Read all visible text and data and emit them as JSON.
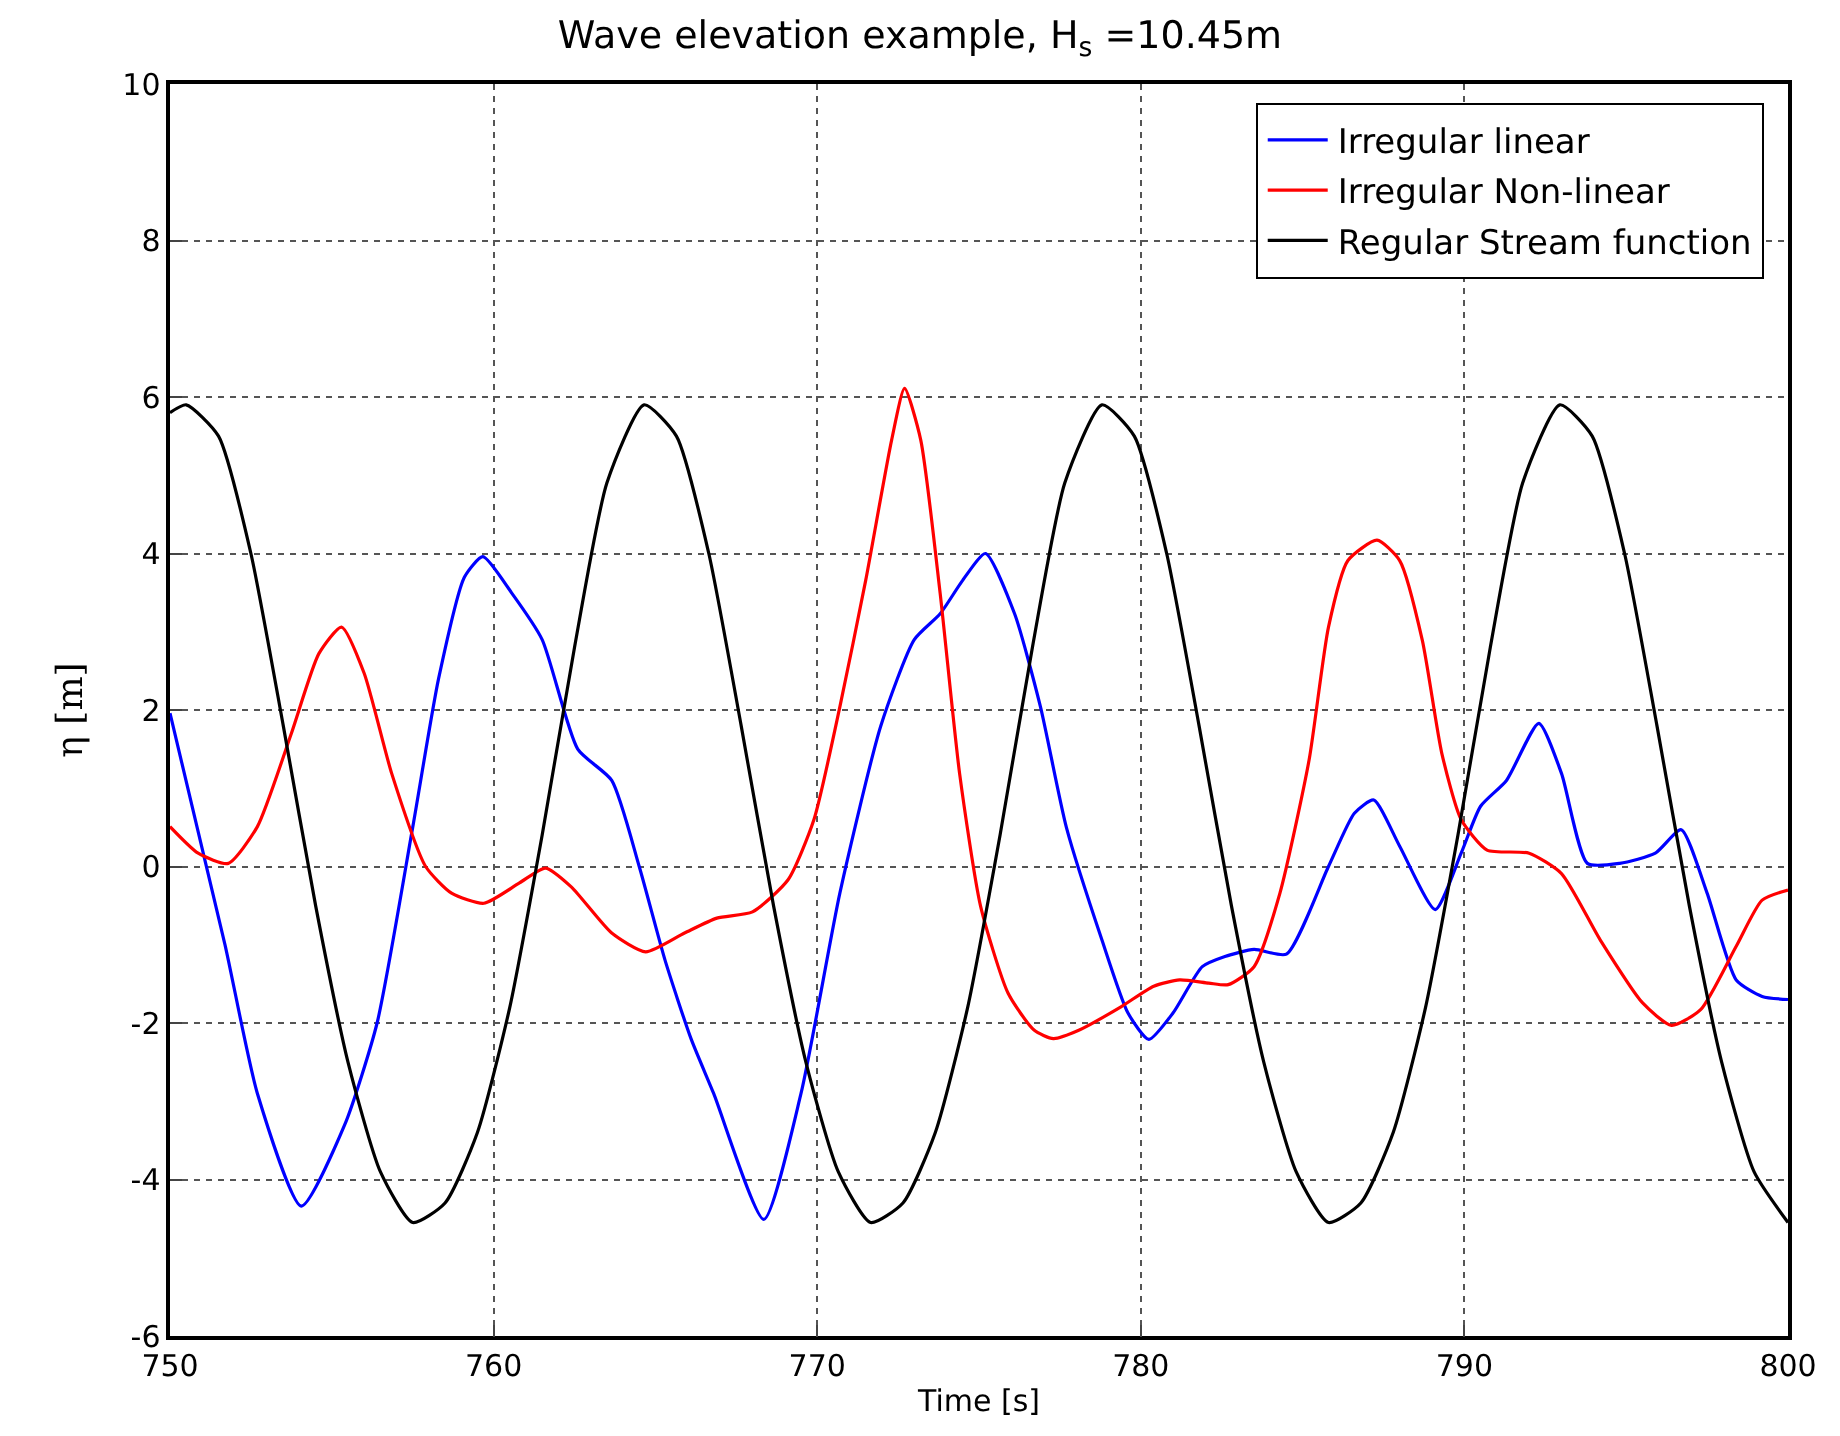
{
  "chart_data": {
    "type": "line",
    "title": "Wave elevation example, H$_{s}$ =10.45m",
    "xlabel": "Time [s]",
    "ylabel": "η [m]",
    "xlim": [
      750,
      800
    ],
    "xticks": [
      750,
      760,
      770,
      780,
      790,
      800
    ],
    "ylim": [
      -6,
      10
    ],
    "yticks": [
      -6,
      -4,
      -2,
      0,
      2,
      4,
      6,
      8,
      10
    ],
    "grid": true,
    "legend": "top right",
    "series": [
      {
        "name": "Irregular linear",
        "color": "#0000ff",
        "x": [
          750,
          751.7,
          752.7,
          754.06,
          755.4,
          756.4,
          757.5,
          758.3,
          759.1,
          759.67,
          760.55,
          761.5,
          762.6,
          763.65,
          764.5,
          765.3,
          766.1,
          766.8,
          768.35,
          769.5,
          770.7,
          771.96,
          773.0,
          773.8,
          774.5,
          775.2,
          776.1,
          776.9,
          777.7,
          778.8,
          779.6,
          780.25,
          781.0,
          781.9,
          782.6,
          783.5,
          784.5,
          785.8,
          786.6,
          787.2,
          788.0,
          789.1,
          789.9,
          790.5,
          791.3,
          792.3,
          793.0,
          793.8,
          794.8,
          795.9,
          796.7,
          797.5,
          798.4,
          799.2,
          800
        ],
        "values": [
          1.96,
          -1.0,
          -2.9,
          -4.34,
          -3.3,
          -2.0,
          0.5,
          2.4,
          3.7,
          3.96,
          3.5,
          2.9,
          1.5,
          1.1,
          0,
          -1.2,
          -2.2,
          -2.9,
          -4.51,
          -2.9,
          -0.34,
          1.79,
          2.9,
          3.23,
          3.66,
          4.0,
          3.23,
          2.04,
          0.5,
          -0.94,
          -1.87,
          -2.21,
          -1.87,
          -1.28,
          -1.15,
          -1.06,
          -1.12,
          0,
          0.68,
          0.85,
          0.26,
          -0.55,
          0.17,
          0.77,
          1.1,
          1.83,
          1.19,
          0.04,
          0.04,
          0.17,
          0.47,
          -0.34,
          -1.45,
          -1.66,
          -1.7
        ]
      },
      {
        "name": "Irregular Non-linear",
        "color": "#ff0000",
        "x": [
          750,
          750.87,
          751.8,
          752.7,
          753.75,
          754.6,
          755.3,
          756.0,
          756.85,
          757.9,
          758.7,
          759.7,
          760.8,
          761.6,
          762.4,
          763.65,
          764.7,
          765.9,
          766.9,
          768.0,
          769.1,
          769.9,
          770.7,
          771.5,
          772.3,
          772.7,
          773.2,
          773.8,
          774.4,
          775.05,
          775.9,
          776.7,
          777.3,
          778.1,
          779.4,
          780.4,
          781.2,
          782.1,
          782.7,
          783.5,
          784.3,
          785.2,
          785.8,
          786.4,
          787.3,
          788.0,
          788.7,
          789.3,
          789.9,
          790.7,
          792.0,
          793.0,
          794.2,
          795.5,
          796.4,
          797.3,
          798.4,
          799.2,
          800
        ],
        "values": [
          0.51,
          0.17,
          0.04,
          0.51,
          1.7,
          2.72,
          3.06,
          2.47,
          1.19,
          0,
          -0.34,
          -0.47,
          -0.21,
          -0.02,
          -0.26,
          -0.85,
          -1.09,
          -0.85,
          -0.66,
          -0.58,
          -0.17,
          0.6,
          2.04,
          3.66,
          5.45,
          6.11,
          5.45,
          3.49,
          1.19,
          -0.51,
          -1.62,
          -2.09,
          -2.2,
          -2.09,
          -1.79,
          -1.53,
          -1.45,
          -1.49,
          -1.51,
          -1.28,
          -0.34,
          1.36,
          3.06,
          3.91,
          4.17,
          3.91,
          2.89,
          1.45,
          0.6,
          0.21,
          0.17,
          -0.09,
          -0.94,
          -1.74,
          -2.03,
          -1.83,
          -1.02,
          -0.43,
          -0.3
        ]
      },
      {
        "name": "Regular Stream function",
        "color": "#000000",
        "x": [
          750,
          750.5,
          751.5,
          752.5,
          753.5,
          754.5,
          755.5,
          756.5,
          757.5,
          758.5,
          759.5,
          760.5,
          761.5,
          762.5,
          763.5,
          764.65,
          765.65,
          766.65,
          767.65,
          768.65,
          769.65,
          770.65,
          771.65,
          772.65,
          773.65,
          774.65,
          775.65,
          776.65,
          777.65,
          778.8,
          779.8,
          780.8,
          781.8,
          782.8,
          783.8,
          784.8,
          785.8,
          786.8,
          787.8,
          788.8,
          789.8,
          790.8,
          791.8,
          792.95,
          793.95,
          794.95,
          795.95,
          796.95,
          797.95,
          798.95,
          800
        ],
        "values": [
          5.8,
          5.9,
          5.5,
          4.0,
          1.8,
          -0.5,
          -2.5,
          -3.9,
          -4.55,
          -4.3,
          -3.4,
          -1.8,
          0.4,
          2.8,
          4.9,
          5.9,
          5.5,
          4.0,
          1.8,
          -0.5,
          -2.5,
          -3.9,
          -4.55,
          -4.3,
          -3.4,
          -1.8,
          0.4,
          2.8,
          4.9,
          5.9,
          5.5,
          4.0,
          1.8,
          -0.5,
          -2.5,
          -3.9,
          -4.55,
          -4.3,
          -3.4,
          -1.8,
          0.4,
          2.8,
          4.9,
          5.9,
          5.5,
          4.0,
          1.8,
          -0.5,
          -2.5,
          -3.9,
          -4.55
        ]
      }
    ]
  }
}
